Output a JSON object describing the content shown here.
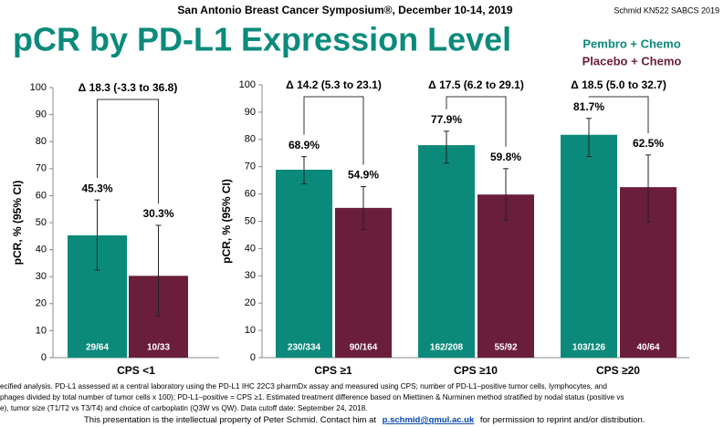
{
  "header": "San Antonio Breast Cancer Symposium®, December 10-14, 2019",
  "corner": "Schmid  KN522  SABCS 2019",
  "title": "pCR by PD-L1 Expression Level",
  "footnote": [
    "ecified analysis. PD-L1 assessed at a central laboratory using the PD-L1 IHC 22C3 pharmDx assay and measured using CPS; number of PD-L1–positive tumor cells, lymphocytes, and",
    "phages divided by total number of tumor cells x 100); PD-L1–positive = CPS ≥1. Estimated treatment difference based on Miettinen & Nurminen method stratified by nodal status (positive vs",
    "e), tumor size (T1/T2 vs T3/T4) and choice of carboplatin (Q3W vs QW). Data cutoff date: September 24, 2018."
  ],
  "footer": {
    "before": "This presentation is the intellectual property of Peter Schmid. Contact him at",
    "email": "p.schmid@qmul.ac.uk",
    "after": "for permission to reprint and/or distribution."
  },
  "chart_data": [
    {
      "type": "bar",
      "ylabel": "pCR, % (95% CI)",
      "ylim": [
        0,
        100
      ],
      "yticks": [
        0,
        10,
        20,
        30,
        40,
        50,
        60,
        70,
        80,
        90,
        100
      ],
      "categories": [
        "CPS <1"
      ],
      "deltas": [
        "Δ 18.3 (-3.3 to 36.8)"
      ],
      "series": [
        {
          "name": "Pembro + Chemo",
          "color": "#0b8a7b",
          "values": [
            45.3
          ],
          "value_labels": [
            "45.3%"
          ],
          "ci_low": [
            32.4
          ],
          "ci_high": [
            58.4
          ],
          "counts": [
            "29/64"
          ]
        },
        {
          "name": "Placebo + Chemo",
          "color": "#6a1e3b",
          "values": [
            30.3
          ],
          "value_labels": [
            "30.3%"
          ],
          "ci_low": [
            15.5
          ],
          "ci_high": [
            49
          ],
          "counts": [
            "10/33"
          ]
        }
      ]
    },
    {
      "type": "bar",
      "ylabel": "pCR, % (95% CI)",
      "ylim": [
        0,
        100
      ],
      "yticks": [
        0,
        10,
        20,
        30,
        40,
        50,
        60,
        70,
        80,
        90,
        100
      ],
      "categories": [
        "CPS ≥1",
        "CPS ≥10",
        "CPS ≥20"
      ],
      "deltas": [
        "Δ 14.2 (5.3 to 23.1)",
        "Δ 17.5 (6.2 to 29.1)",
        "Δ 18.5 (5.0 to 32.7)"
      ],
      "series": [
        {
          "name": "Pembro + Chemo",
          "color": "#0b8a7b",
          "values": [
            68.9,
            77.9,
            81.7
          ],
          "value_labels": [
            "68.9%",
            "77.9%",
            "81.7%"
          ],
          "ci_low": [
            63.7,
            71.3,
            73.7
          ],
          "ci_high": [
            73.7,
            83,
            87.7
          ],
          "counts": [
            "230/334",
            "162/208",
            "103/126"
          ]
        },
        {
          "name": "Placebo + Chemo",
          "color": "#6a1e3b",
          "values": [
            54.9,
            59.8,
            62.5
          ],
          "value_labels": [
            "54.9%",
            "59.8%",
            "62.5%"
          ],
          "ci_low": [
            47,
            50.3,
            49.7
          ],
          "ci_high": [
            62.7,
            69.3,
            74.3
          ],
          "counts": [
            "90/164",
            "55/92",
            "40/64"
          ]
        }
      ]
    }
  ]
}
